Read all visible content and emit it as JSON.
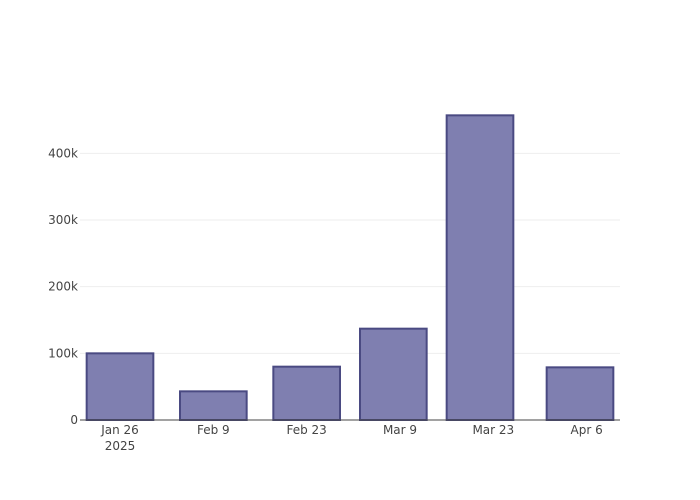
{
  "chart_data": {
    "type": "bar",
    "x_axis_type": "date",
    "categories": [
      "2025-01-26",
      "2025-02-09",
      "2025-02-23",
      "2025-03-09",
      "2025-03-23",
      "2025-04-06"
    ],
    "bars": [
      {
        "start": "2025-01-21",
        "end": "2025-01-31",
        "value": 100000
      },
      {
        "start": "2025-02-04",
        "end": "2025-02-14",
        "value": 43000
      },
      {
        "start": "2025-02-18",
        "end": "2025-02-28",
        "value": 80000
      },
      {
        "start": "2025-03-03",
        "end": "2025-03-13",
        "value": 137000
      },
      {
        "start": "2025-03-16",
        "end": "2025-03-26",
        "value": 457000
      },
      {
        "start": "2025-03-31",
        "end": "2025-04-10",
        "value": 79000
      }
    ],
    "x_ticks": [
      {
        "date": "2025-01-26",
        "label": "Jan 26",
        "sublabel": "2025"
      },
      {
        "date": "2025-02-09",
        "label": "Feb 9",
        "sublabel": ""
      },
      {
        "date": "2025-02-23",
        "label": "Feb 23",
        "sublabel": ""
      },
      {
        "date": "2025-03-09",
        "label": "Mar 9",
        "sublabel": ""
      },
      {
        "date": "2025-03-23",
        "label": "Mar 23",
        "sublabel": ""
      },
      {
        "date": "2025-04-06",
        "label": "Apr 6",
        "sublabel": ""
      }
    ],
    "y_ticks": [
      {
        "value": 0,
        "label": "0"
      },
      {
        "value": 100000,
        "label": "100k"
      },
      {
        "value": 200000,
        "label": "200k"
      },
      {
        "value": 300000,
        "label": "300k"
      },
      {
        "value": 400000,
        "label": "400k"
      }
    ],
    "xlim": [
      "2025-01-20",
      "2025-04-11"
    ],
    "ylim": [
      0,
      480000
    ],
    "grid": true,
    "colors": {
      "bar_fill": "#7f7fb0",
      "bar_stroke": "#4a4a82",
      "grid": "#eeeeee",
      "axis": "#444444"
    }
  }
}
